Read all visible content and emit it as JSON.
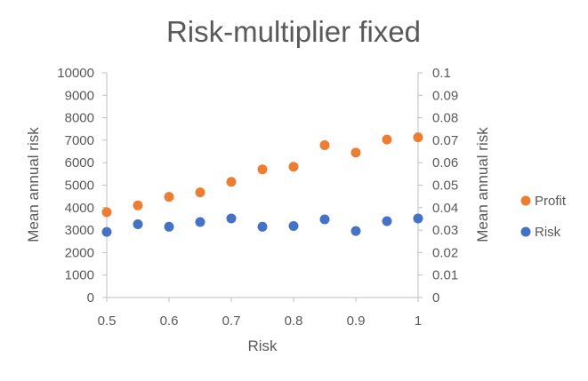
{
  "chart_data": {
    "type": "scatter",
    "title": "Risk-multiplier fixed",
    "xlabel": "Risk",
    "ylabel_left": "Mean annual risk",
    "ylabel_right": "Mean annual risk",
    "xlim": [
      0.5,
      1.0
    ],
    "x_ticks": [
      "0.5",
      "0.6",
      "0.7",
      "0.8",
      "0.9",
      "1"
    ],
    "ylim_left": [
      0,
      10000
    ],
    "y_ticks_left": [
      "0",
      "1000",
      "2000",
      "3000",
      "4000",
      "5000",
      "6000",
      "7000",
      "8000",
      "9000",
      "10000"
    ],
    "ylim_right": [
      0,
      0.1
    ],
    "y_ticks_right": [
      "0",
      "0.01",
      "0.02",
      "0.03",
      "0.04",
      "0.05",
      "0.06",
      "0.07",
      "0.08",
      "0.09",
      "0.1"
    ],
    "grid": false,
    "legend_position": "right",
    "series": [
      {
        "name": "Profit",
        "axis": "left",
        "color": "#ED7D31",
        "x": [
          0.5,
          0.55,
          0.6,
          0.65,
          0.7,
          0.75,
          0.8,
          0.85,
          0.9,
          0.95,
          1.0
        ],
        "y": [
          3800,
          4100,
          4480,
          4680,
          5150,
          5700,
          5820,
          6780,
          6450,
          7030,
          7130
        ]
      },
      {
        "name": "Risk",
        "axis": "right",
        "color": "#4472C4",
        "x": [
          0.5,
          0.55,
          0.6,
          0.65,
          0.7,
          0.75,
          0.8,
          0.85,
          0.9,
          0.95,
          1.0
        ],
        "y": [
          0.0292,
          0.0326,
          0.0315,
          0.0336,
          0.0352,
          0.0315,
          0.0318,
          0.0348,
          0.0296,
          0.034,
          0.0352
        ]
      }
    ]
  }
}
